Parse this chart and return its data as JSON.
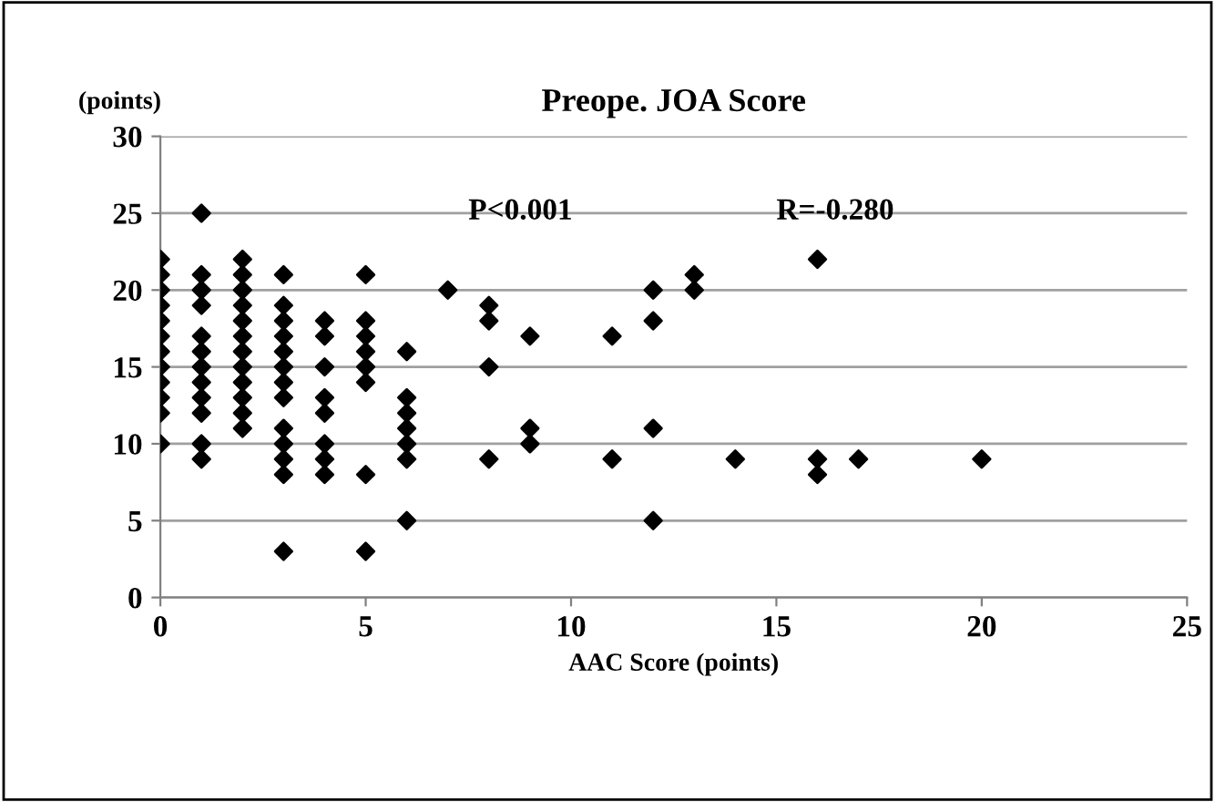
{
  "chart_data": {
    "type": "scatter",
    "title": "Preope. JOA Score",
    "xlabel": "AAC Score (points)",
    "ylabel": "(points)",
    "annotations": [
      "P<0.001",
      "R=-0.280"
    ],
    "series": [
      {
        "color": "#000000",
        "x": [
          0,
          0,
          0,
          0,
          0,
          0,
          0,
          0,
          0,
          0,
          0,
          0,
          1,
          1,
          1,
          1,
          1,
          1,
          1,
          1,
          1,
          1,
          1,
          1,
          2,
          2,
          2,
          2,
          2,
          2,
          2,
          2,
          2,
          2,
          2,
          2,
          3,
          3,
          3,
          3,
          3,
          3,
          3,
          3,
          3,
          3,
          3,
          3,
          3,
          4,
          4,
          4,
          4,
          4,
          4,
          4,
          4,
          5,
          5,
          5,
          5,
          5,
          5,
          5,
          5,
          6,
          6,
          6,
          6,
          6,
          6,
          6,
          7,
          8,
          8,
          8,
          8,
          9,
          9,
          9,
          11,
          11,
          12,
          12,
          12,
          12,
          13,
          13,
          14,
          16,
          16,
          16,
          17,
          20
        ],
        "values": [
          10,
          12,
          13,
          14,
          15,
          16,
          17,
          18,
          19,
          20,
          21,
          22,
          25,
          21,
          20,
          19,
          17,
          16,
          15,
          14,
          13,
          12,
          10,
          9,
          22,
          21,
          20,
          19,
          18,
          17,
          16,
          15,
          14,
          13,
          12,
          11,
          21,
          19,
          18,
          17,
          16,
          15,
          14,
          13,
          11,
          10,
          9,
          8,
          3,
          18,
          17,
          15,
          13,
          12,
          10,
          9,
          8,
          21,
          18,
          17,
          16,
          15,
          14,
          8,
          3,
          16,
          13,
          12,
          11,
          10,
          9,
          5,
          20,
          19,
          18,
          15,
          9,
          17,
          11,
          10,
          17,
          9,
          20,
          18,
          11,
          5,
          21,
          20,
          9,
          22,
          9,
          8,
          9,
          9
        ]
      }
    ],
    "xlim": [
      0,
      25
    ],
    "xticks": [
      0,
      5,
      10,
      15,
      20,
      25
    ],
    "ylim": [
      0,
      30
    ],
    "yticks": [
      0,
      5,
      10,
      15,
      20,
      25,
      30
    ],
    "grid": "y",
    "marker": "diamond",
    "legend": false
  }
}
